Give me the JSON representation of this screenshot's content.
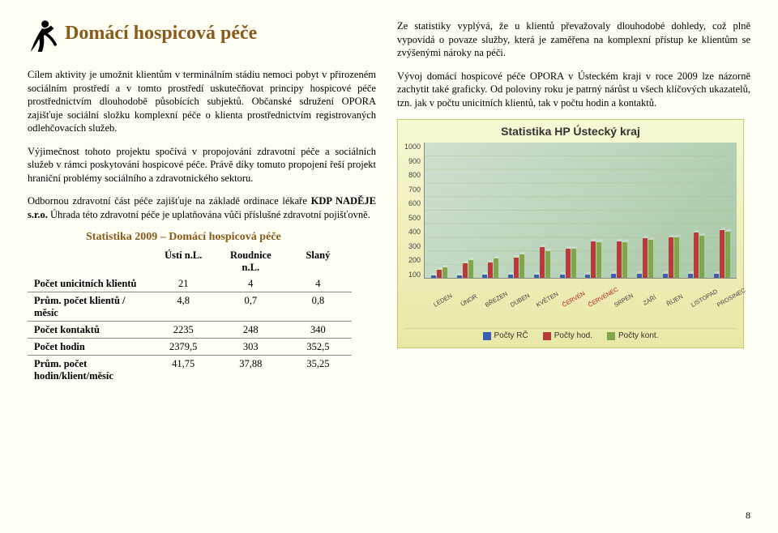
{
  "title": "Domácí hospicová péče",
  "left": {
    "p1": "Cílem aktivity je umožnit klientům v terminálním stádiu nemoci pobyt v přirozeném sociálním prostředí a v tomto prostředí uskutečňovat principy hospicové péče prostřednictvím dlouhodobě působících subjektů. Občanské sdružení OPORA zajišťuje sociální složku komplexní péče o klienta prostřednictvím registrovaných odlehčovacích služeb.",
    "p2a": "Výjimečnost tohoto projektu spočívá v propojování zdravotní péče a sociálních služeb v rámci poskytování hospicové péče. Právě díky tomuto propojení řeší projekt hraniční problémy sociálního a zdravotnického sektoru.",
    "p2b_pre": "Odbornou zdravotní část péče zajišťuje na základě ordinace lékaře ",
    "p2b_bold": "KDP NADĚJE s.r.o.",
    "p2b_post": " Úhrada této zdravotní péče je uplatňována vůči příslušné zdravotní pojišťovně."
  },
  "right": {
    "p1": "Ze statistiky vyplývá, že u klientů převažovaly dlouhodobé dohledy, což plně vypovídá o povaze služby, která je zaměřena na komplexní přístup ke klientům se zvýšenými nároky na péči.",
    "p2": "Vývoj domácí hospicové péče OPORA v Ústeckém kraji v roce 2009 lze názorně zachytit také graficky. Od poloviny roku je patrný nárůst u všech klíčových ukazatelů, tzn. jak v počtu unicitních klientů, tak v počtu hodin a kontaktů."
  },
  "table": {
    "title": "Statistika 2009 – Domácí hospicová péče",
    "cols": [
      "Ústí n.L.",
      "Roudnice n.L.",
      "Slaný"
    ],
    "rows": [
      {
        "label": "Počet unicitních klientů",
        "vals": [
          "21",
          "4",
          "4"
        ]
      },
      {
        "label": "Prům. počet klientů / měsíc",
        "vals": [
          "4,8",
          "0,7",
          "0,8"
        ]
      },
      {
        "label": "Počet kontaktů",
        "vals": [
          "2235",
          "248",
          "340"
        ]
      },
      {
        "label": "Počet hodin",
        "vals": [
          "2379,5",
          "303",
          "352,5"
        ]
      },
      {
        "label": "Prům. počet hodin/klient/měsíc",
        "vals": [
          "41,75",
          "37,88",
          "35,25"
        ]
      }
    ]
  },
  "chart": {
    "title": "Statistika HP Ústecký kraj",
    "ymax": 1000,
    "yticks": [
      "1000",
      "900",
      "800",
      "700",
      "600",
      "500",
      "400",
      "300",
      "200",
      "100"
    ],
    "colors": {
      "rc": "#3b5fb0",
      "hod": "#b83a3a",
      "kont": "#7fa64a",
      "plot_bg": "#bcd6bc"
    },
    "months": [
      {
        "label": "LEDEN",
        "red": false,
        "rc": 20,
        "hod": 60,
        "kont": 80
      },
      {
        "label": "ÚNOR",
        "red": false,
        "rc": 20,
        "hod": 110,
        "kont": 130
      },
      {
        "label": "BŘEZEN",
        "red": false,
        "rc": 22,
        "hod": 115,
        "kont": 145
      },
      {
        "label": "DUBEN",
        "red": false,
        "rc": 22,
        "hod": 150,
        "kont": 175
      },
      {
        "label": "KVĚTEN",
        "red": false,
        "rc": 25,
        "hod": 228,
        "kont": 195
      },
      {
        "label": "ČERVEN",
        "red": true,
        "rc": 25,
        "hod": 215,
        "kont": 215
      },
      {
        "label": "ČERVENEC",
        "red": true,
        "rc": 25,
        "hod": 265,
        "kont": 260
      },
      {
        "label": "SRPEN",
        "red": false,
        "rc": 28,
        "hod": 265,
        "kont": 260
      },
      {
        "label": "ZÁŘÍ",
        "red": false,
        "rc": 30,
        "hod": 290,
        "kont": 280
      },
      {
        "label": "ŘÍJEN",
        "red": false,
        "rc": 30,
        "hod": 300,
        "kont": 295
      },
      {
        "label": "LISTOPAD",
        "red": false,
        "rc": 30,
        "hod": 335,
        "kont": 310
      },
      {
        "label": "PROSINEC",
        "red": false,
        "rc": 32,
        "hod": 350,
        "kont": 340
      }
    ],
    "legend": [
      "Počty RČ",
      "Počty hod.",
      "Počty kont."
    ]
  },
  "pagenum": "8"
}
